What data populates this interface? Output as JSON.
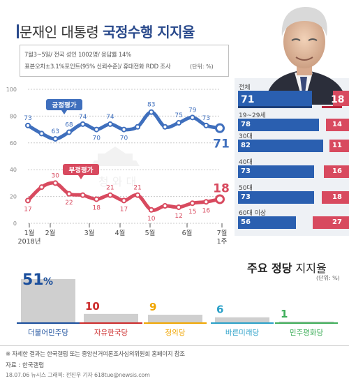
{
  "header": {
    "title_prefix": "문재인 대통령 ",
    "title_bold": "국정수행 지지율",
    "info_line1": "7월3~5일/ 전국 성인 1002명/ 응답률 14%",
    "info_line2": "표본오차±3.1%포인트(95% 신뢰수준)/ 휴대전화 RDD 조사",
    "unit": "(단위: %)"
  },
  "colors": {
    "positive": "#3f6fbd",
    "negative": "#d84a5f",
    "accent_dark": "#2a4a8c"
  },
  "chart_data": [
    {
      "type": "line",
      "x_ticks": [
        "1월",
        "2월",
        "3월",
        "4월",
        "5월",
        "6월",
        "7월"
      ],
      "x_subticks": [
        "2018년",
        "",
        "",
        "",
        "",
        "",
        "1주"
      ],
      "y_ticks": [
        0,
        20,
        40,
        60,
        80,
        100
      ],
      "ylim": [
        0,
        100
      ],
      "series": [
        {
          "name": "긍정평가",
          "values": [
            73,
            67,
            63,
            68,
            74,
            70,
            74,
            70,
            72,
            83,
            72,
            75,
            79,
            73,
            71
          ],
          "labels": [
            "73",
            "",
            "63",
            "68",
            "74",
            "70",
            "74",
            "70",
            "",
            "83",
            "",
            "75",
            "79",
            "73",
            "71"
          ]
        },
        {
          "name": "부정평가",
          "values": [
            17,
            27,
            30,
            22,
            21,
            18,
            21,
            17,
            21,
            10,
            13,
            12,
            15,
            16,
            18
          ],
          "labels": [
            "17",
            "",
            "30",
            "22",
            "",
            "18",
            "21",
            "17",
            "21",
            "10",
            "",
            "12",
            "15",
            "16",
            "18"
          ]
        }
      ]
    },
    {
      "type": "bar",
      "categories": [
        "전체",
        "19~29세",
        "30대",
        "40대",
        "50대",
        "60대 이상"
      ],
      "series": [
        {
          "name": "긍정평가",
          "values": [
            71,
            78,
            82,
            73,
            73,
            56
          ]
        },
        {
          "name": "부정평가",
          "values": [
            18,
            14,
            11,
            16,
            18,
            27
          ]
        }
      ]
    },
    {
      "type": "bar",
      "title": "주요 정당 지지율",
      "title_bold": "주요 정당",
      "title_light": " 지지율",
      "unit": "(단위: %)",
      "categories": [
        "더불어민주당",
        "자유한국당",
        "정의당",
        "바른미래당",
        "민주평화당"
      ],
      "values": [
        51,
        10,
        9,
        6,
        1
      ],
      "value_labels": [
        "51",
        "10",
        "9",
        "6",
        "1"
      ],
      "percent_sign": "%",
      "colors": [
        "#1a4e9c",
        "#cc2b2b",
        "#f0a500",
        "#2aa0c8",
        "#3fae5a"
      ]
    }
  ],
  "footer": {
    "note": "※ 자세한 결과는 한국갤럽 또는 중앙선거여론조사심의위원회 홈페이지 참조",
    "source": "자료 : 한국갤럽",
    "credit": "18.07.06 뉴시스 그래픽: 전진우 기자 618tue@newsis.com"
  }
}
